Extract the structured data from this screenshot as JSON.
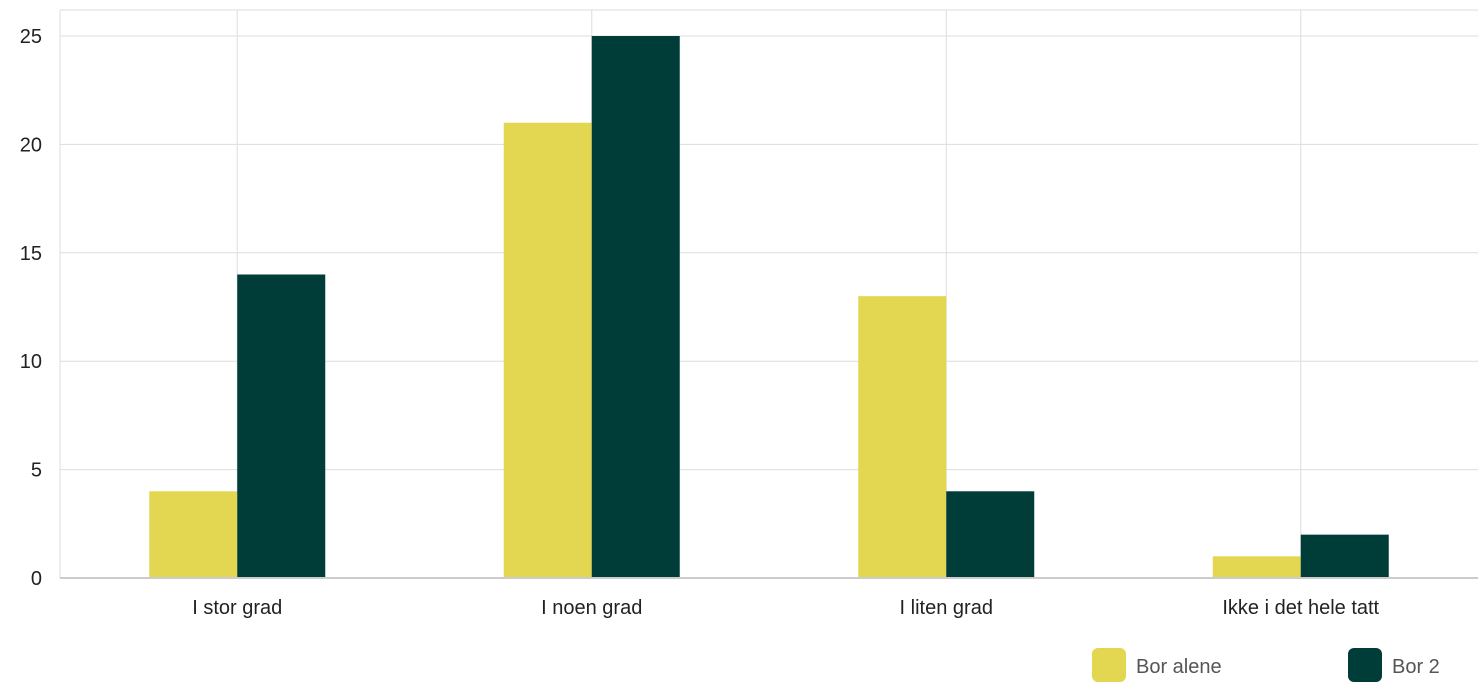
{
  "chart_data": {
    "type": "bar",
    "categories": [
      "I stor grad",
      "I noen grad",
      "I liten grad",
      "Ikke i det hele tatt"
    ],
    "series": [
      {
        "name": "Bor alene",
        "values": [
          4,
          21,
          13,
          1
        ],
        "color": "#e3d651"
      },
      {
        "name": "Bor 2",
        "values": [
          14,
          25,
          4,
          2
        ],
        "color": "#003d38"
      }
    ],
    "ylim": [
      0,
      26.2
    ],
    "yticks": [
      0,
      5,
      10,
      15,
      20,
      25
    ],
    "grid": true,
    "legend": "bottom-right"
  }
}
